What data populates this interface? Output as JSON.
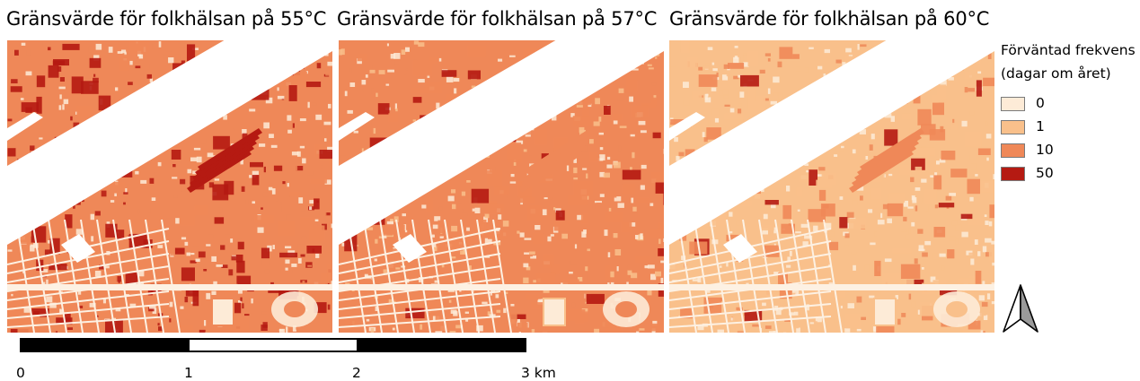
{
  "panels": [
    {
      "title": "Gränsvärde för folkhälsan på 55°C",
      "threshold": "55°C",
      "dominant_class": "10"
    },
    {
      "title": "Gränsvärde för folkhälsan på 57°C",
      "threshold": "57°C",
      "dominant_class": "10"
    },
    {
      "title": "Gränsvärde för folkhälsan på 60°C",
      "threshold": "60°C",
      "dominant_class": "1"
    }
  ],
  "legend": {
    "title_line1": "Förväntad frekvens",
    "title_line2": "(dagar om året)",
    "items": [
      {
        "label": "0",
        "color": "#fdebd7"
      },
      {
        "label": "1",
        "color": "#f9c08b"
      },
      {
        "label": "10",
        "color": "#ef8858"
      },
      {
        "label": "50",
        "color": "#b51a12"
      }
    ]
  },
  "colors": {
    "river": "#ffffff",
    "road": "#fdf1e3"
  },
  "scalebar": {
    "ticks": [
      "0",
      "1",
      "2",
      "3 km"
    ],
    "unit": "km"
  },
  "icons": {
    "north_arrow": "north-arrow-icon"
  }
}
